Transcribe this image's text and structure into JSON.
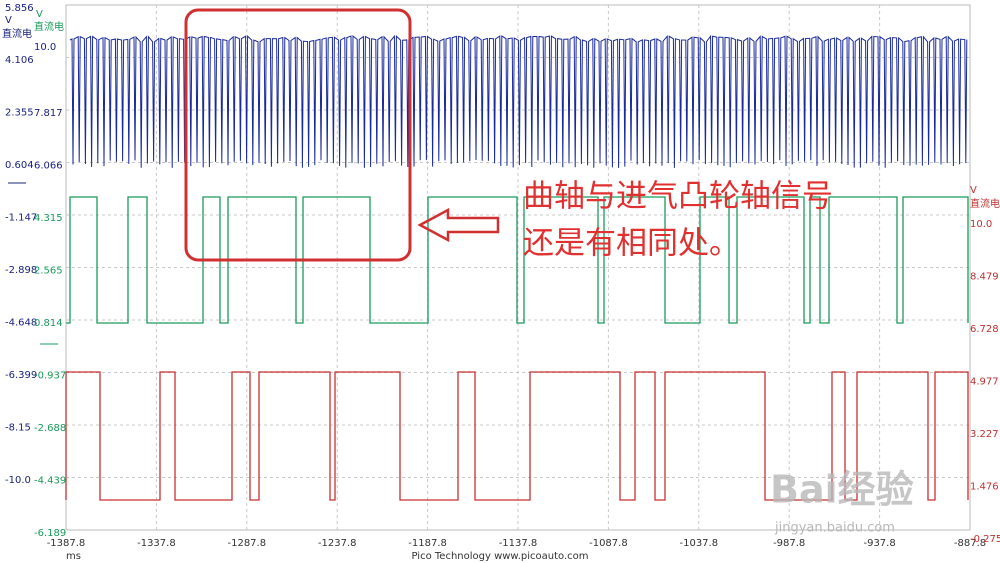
{
  "channel_a_axis": {
    "unit": "V",
    "coupling": "直流电",
    "ticks": [
      "5.856",
      "4.106",
      "2.355",
      "0.604",
      "-1.147",
      "-2.898",
      "-4.648",
      "-6.399",
      "-8.15",
      "-10.0"
    ]
  },
  "channel_b_axis": {
    "unit": "V",
    "coupling": "直流电",
    "ticks": [
      "10.0",
      "7.817",
      "6.066",
      "4.315",
      "2.565",
      "0.814",
      "-0.937",
      "-2.688",
      "-4.439",
      "-6.189"
    ]
  },
  "channel_c_axis": {
    "unit": "V",
    "coupling": "直流电",
    "ticks": [
      "10.0",
      "8.479",
      "6.728",
      "4.977",
      "3.227",
      "1.476",
      "-0.275"
    ]
  },
  "time_axis": {
    "unit": "ms",
    "ticks": [
      "-1387.8",
      "-1337.8",
      "-1287.8",
      "-1237.8",
      "-1187.8",
      "-1137.8",
      "-1087.8",
      "-1037.8",
      "-987.8",
      "-937.8",
      "-887.8"
    ]
  },
  "footer": "Pico Technology   www.picoauto.com",
  "annotation": {
    "line1": "曲轴与进气凸轮轴信号",
    "line2": "还是有相同处。"
  },
  "watermark": {
    "logo": "Bai经验",
    "url": "jingyan.baidu.com"
  }
}
